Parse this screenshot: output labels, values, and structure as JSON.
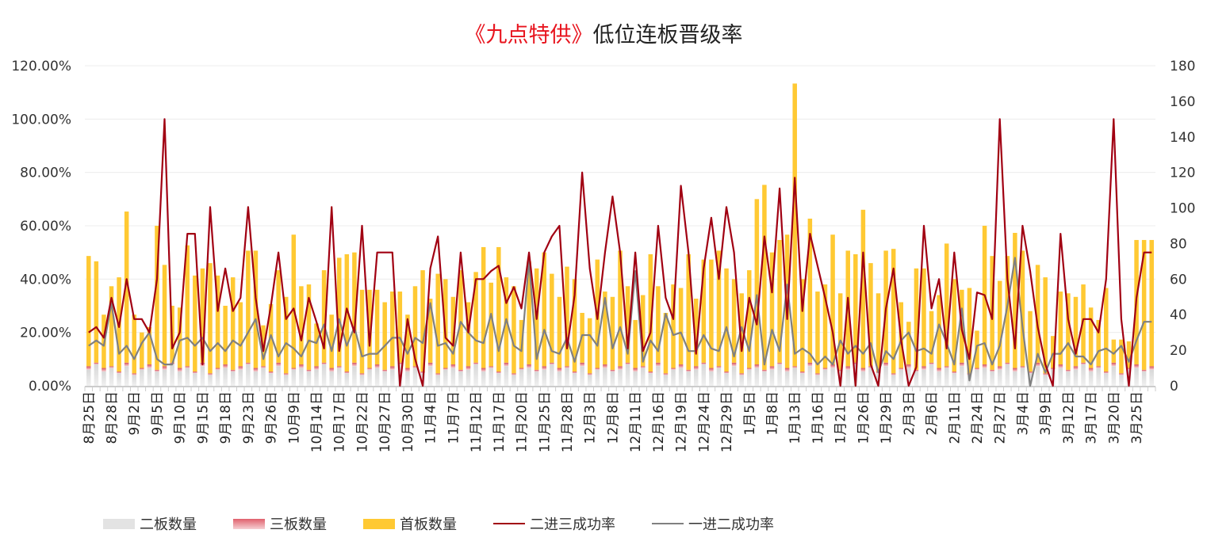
{
  "title": {
    "highlight": "《九点特供》",
    "rest": "低位连板晋级率"
  },
  "colors": {
    "second": "#e3e3e3",
    "third": "#e79aa0",
    "first": "#ffc933",
    "line23": "#a10012",
    "line12": "#808080",
    "title_highlight": "#e8141e"
  },
  "chart_data": {
    "type": "bar+line",
    "title": "《九点特供》低位连板晋级率",
    "left_axis": {
      "min": 0,
      "max": 1.2,
      "ticks": [
        "0.00%",
        "20.00%",
        "40.00%",
        "60.00%",
        "80.00%",
        "100.00%",
        "120.00%"
      ]
    },
    "right_axis": {
      "min": 0,
      "max": 180,
      "ticks": [
        "0",
        "20",
        "40",
        "60",
        "80",
        "100",
        "120",
        "140",
        "160",
        "180"
      ]
    },
    "grid": true,
    "legend_position": "bottom",
    "x_tick_labels": [
      "8月25日",
      "8月28日",
      "9月2日",
      "9月5日",
      "9月10日",
      "9月15日",
      "9月18日",
      "9月23日",
      "9月26日",
      "10月9日",
      "10月14日",
      "10月17日",
      "10月22日",
      "10月27日",
      "10月30日",
      "11月4日",
      "11月7日",
      "11月12日",
      "11月17日",
      "11月20日",
      "11月25日",
      "11月28日",
      "12月3日",
      "12月8日",
      "12月11日",
      "12月16日",
      "12月19日",
      "12月24日",
      "12月29日",
      "1月5日",
      "1月8日",
      "1月13日",
      "1月16日",
      "1月21日",
      "1月26日",
      "1月29日",
      "2月3日",
      "2月6日",
      "2月11日",
      "2月24日",
      "2月27日",
      "3月4日",
      "3月9日",
      "3月12日",
      "3月17日",
      "3月20日",
      "3月25日"
    ],
    "x_tick_every": 3,
    "series": [
      {
        "name": "二板数量",
        "type": "bar-stacked",
        "axis": "right",
        "values": [
          9,
          12,
          8,
          10,
          7,
          11,
          6,
          9,
          10,
          8,
          9,
          12,
          8,
          10,
          7,
          11,
          6,
          9,
          10,
          8,
          9,
          12,
          8,
          10,
          7,
          11,
          6,
          9,
          10,
          8,
          9,
          12,
          8,
          10,
          7,
          11,
          6,
          9,
          10,
          8,
          9,
          12,
          8,
          10,
          7,
          11,
          6,
          9,
          10,
          8,
          9,
          12,
          8,
          10,
          7,
          11,
          6,
          9,
          10,
          8,
          9,
          12,
          8,
          10,
          7,
          11,
          6,
          9,
          10,
          8,
          9,
          12,
          8,
          10,
          7,
          11,
          6,
          9,
          10,
          8,
          9,
          12,
          8,
          10,
          7,
          11,
          6,
          9,
          10,
          8,
          9,
          12,
          8,
          10,
          7,
          11,
          6,
          9,
          10,
          8,
          9,
          12,
          8,
          10,
          7,
          11,
          6,
          9,
          10,
          8,
          9,
          12,
          8,
          10,
          7,
          11,
          6,
          9,
          10,
          8,
          9,
          12,
          8,
          10,
          7,
          11,
          6,
          9,
          10,
          8,
          9,
          12,
          8,
          10,
          7,
          11,
          6,
          9,
          10,
          8,
          9
        ]
      },
      {
        "name": "三板数量",
        "type": "bar-stacked",
        "axis": "right",
        "values": [
          2,
          1,
          2,
          1,
          1,
          2,
          1,
          1,
          2,
          1,
          2,
          1,
          2,
          1,
          1,
          2,
          1,
          1,
          2,
          1,
          2,
          1,
          2,
          1,
          1,
          2,
          1,
          1,
          2,
          1,
          2,
          1,
          2,
          1,
          1,
          2,
          1,
          1,
          2,
          1,
          2,
          1,
          2,
          1,
          1,
          2,
          1,
          1,
          2,
          1,
          2,
          1,
          2,
          1,
          1,
          2,
          1,
          1,
          2,
          1,
          2,
          1,
          2,
          1,
          1,
          2,
          1,
          1,
          2,
          1,
          2,
          1,
          2,
          1,
          1,
          2,
          1,
          1,
          2,
          1,
          2,
          1,
          2,
          1,
          1,
          2,
          1,
          1,
          2,
          1,
          2,
          1,
          2,
          1,
          1,
          2,
          1,
          1,
          2,
          1,
          2,
          1,
          2,
          1,
          1,
          2,
          1,
          1,
          2,
          1,
          2,
          1,
          2,
          1,
          1,
          2,
          1,
          1,
          2,
          1,
          2,
          1,
          2,
          1,
          1,
          2,
          1,
          1,
          2,
          1,
          2,
          1,
          2,
          1,
          1,
          2,
          1,
          1,
          2,
          1,
          2
        ]
      },
      {
        "name": "首板数量",
        "type": "bar-stacked",
        "axis": "right",
        "values": [
          62,
          57,
          30,
          45,
          53,
          85,
          33,
          20,
          21,
          81,
          57,
          32,
          34,
          68,
          54,
          53,
          62,
          52,
          33,
          52,
          36,
          63,
          66,
          23,
          38,
          52,
          43,
          75,
          44,
          48,
          24,
          52,
          30,
          61,
          66,
          62,
          47,
          44,
          42,
          38,
          42,
          40,
          30,
          45,
          57,
          36,
          56,
          50,
          38,
          56,
          36,
          51,
          68,
          47,
          70,
          48,
          49,
          27,
          58,
          57,
          64,
          50,
          40,
          56,
          52,
          28,
          31,
          61,
          41,
          41,
          65,
          43,
          27,
          40,
          66,
          43,
          34,
          47,
          43,
          65,
          38,
          58,
          61,
          65,
          58,
          47,
          45,
          55,
          93,
          104,
          64,
          69,
          75,
          159,
          52,
          81,
          46,
          47,
          73,
          43,
          65,
          61,
          89,
          58,
          44,
          63,
          70,
          37,
          24,
          57,
          55,
          29,
          41,
          69,
          52,
          41,
          48,
          21,
          78,
          64,
          48,
          60,
          76,
          65,
          34,
          55,
          54,
          18,
          41,
          43,
          39,
          44,
          34,
          26,
          47,
          13,
          19,
          15,
          70,
          73,
          71
        ]
      },
      {
        "name": "二进三成功率",
        "type": "line",
        "axis": "left",
        "values": [
          0.2,
          0.22,
          0.18,
          0.33,
          0.22,
          0.4,
          0.25,
          0.25,
          0.2,
          0.4,
          1.0,
          0.14,
          0.2,
          0.57,
          0.57,
          0.08,
          0.67,
          0.28,
          0.44,
          0.28,
          0.33,
          0.67,
          0.33,
          0.13,
          0.3,
          0.5,
          0.25,
          0.29,
          0.17,
          0.33,
          0.24,
          0.14,
          0.67,
          0.13,
          0.29,
          0.2,
          0.6,
          0.15,
          0.5,
          0.5,
          0.5,
          0.0,
          0.25,
          0.1,
          0.0,
          0.44,
          0.56,
          0.18,
          0.15,
          0.5,
          0.2,
          0.4,
          0.4,
          0.43,
          0.45,
          0.31,
          0.37,
          0.29,
          0.5,
          0.25,
          0.5,
          0.56,
          0.6,
          0.14,
          0.34,
          0.8,
          0.44,
          0.25,
          0.5,
          0.71,
          0.5,
          0.14,
          0.5,
          0.13,
          0.2,
          0.6,
          0.33,
          0.25,
          0.75,
          0.5,
          0.12,
          0.44,
          0.63,
          0.4,
          0.67,
          0.5,
          0.13,
          0.33,
          0.23,
          0.56,
          0.35,
          0.74,
          0.25,
          0.78,
          0.28,
          0.57,
          0.45,
          0.33,
          0.2,
          0.0,
          0.33,
          0.0,
          0.5,
          0.08,
          0.0,
          0.29,
          0.44,
          0.17,
          0.0,
          0.07,
          0.6,
          0.29,
          0.4,
          0.14,
          0.5,
          0.21,
          0.1,
          0.35,
          0.34,
          0.25,
          1.0,
          0.4,
          0.14,
          0.6,
          0.43,
          0.22,
          0.08,
          0.0,
          0.57,
          0.25,
          0.12,
          0.25,
          0.25,
          0.2,
          0.4,
          1.0,
          0.25,
          0.0,
          0.33,
          0.5,
          0.5
        ]
      },
      {
        "name": "一进二成功率",
        "type": "line",
        "axis": "left",
        "values": [
          0.15,
          0.17,
          0.15,
          0.31,
          0.12,
          0.15,
          0.1,
          0.16,
          0.2,
          0.1,
          0.08,
          0.08,
          0.17,
          0.18,
          0.15,
          0.18,
          0.13,
          0.16,
          0.13,
          0.17,
          0.15,
          0.2,
          0.25,
          0.1,
          0.19,
          0.11,
          0.16,
          0.14,
          0.11,
          0.17,
          0.16,
          0.23,
          0.13,
          0.25,
          0.15,
          0.22,
          0.11,
          0.12,
          0.12,
          0.15,
          0.18,
          0.18,
          0.12,
          0.18,
          0.16,
          0.31,
          0.15,
          0.16,
          0.12,
          0.24,
          0.2,
          0.17,
          0.16,
          0.27,
          0.13,
          0.25,
          0.15,
          0.13,
          0.47,
          0.1,
          0.21,
          0.13,
          0.12,
          0.18,
          0.09,
          0.19,
          0.19,
          0.15,
          0.33,
          0.14,
          0.22,
          0.12,
          0.43,
          0.09,
          0.17,
          0.13,
          0.27,
          0.19,
          0.2,
          0.13,
          0.13,
          0.19,
          0.14,
          0.13,
          0.22,
          0.11,
          0.22,
          0.13,
          0.34,
          0.08,
          0.21,
          0.13,
          0.38,
          0.12,
          0.14,
          0.12,
          0.08,
          0.11,
          0.08,
          0.17,
          0.12,
          0.15,
          0.12,
          0.16,
          0.05,
          0.13,
          0.1,
          0.17,
          0.2,
          0.13,
          0.14,
          0.12,
          0.23,
          0.16,
          0.08,
          0.29,
          0.02,
          0.15,
          0.16,
          0.08,
          0.15,
          0.3,
          0.48,
          0.22,
          0.0,
          0.12,
          0.05,
          0.12,
          0.12,
          0.16,
          0.11,
          0.11,
          0.08,
          0.13,
          0.14,
          0.12,
          0.15,
          0.09,
          0.17,
          0.24,
          0.24
        ]
      }
    ]
  }
}
